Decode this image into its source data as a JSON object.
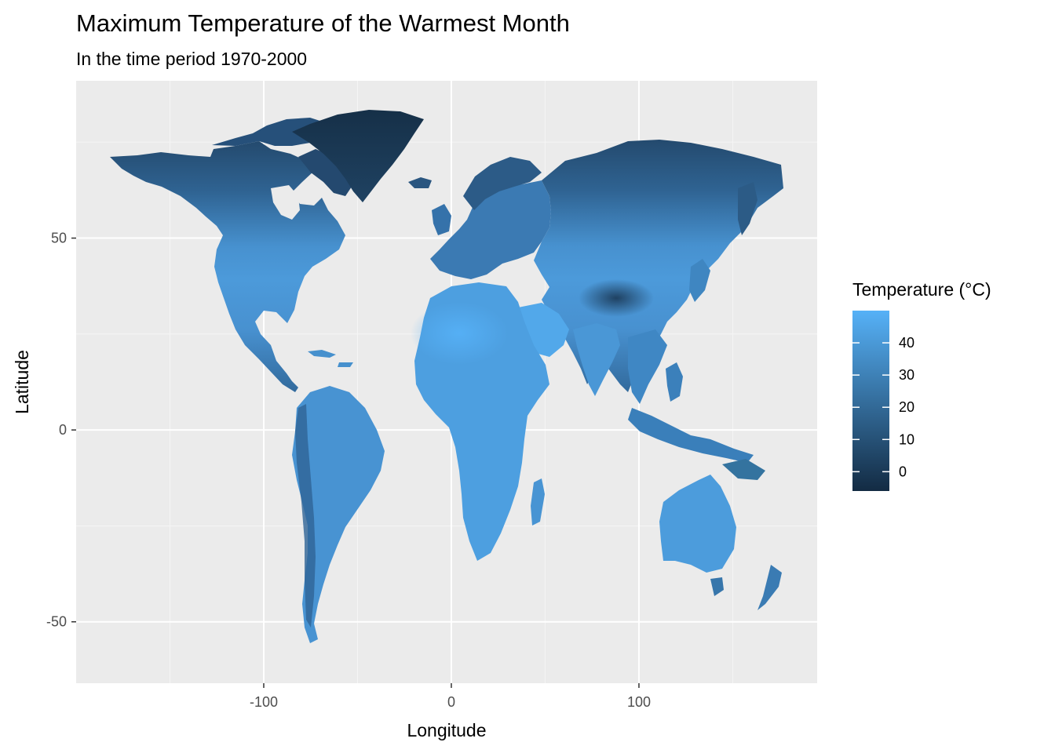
{
  "title": "Maximum Temperature of the Warmest Month",
  "subtitle": "In the time period 1970-2000",
  "x_axis": {
    "label": "Longitude",
    "ticks": [
      -100,
      0,
      100
    ],
    "tick_labels": [
      "-100",
      "0",
      "100"
    ],
    "minor_ticks": [
      -150,
      -50,
      50,
      150
    ],
    "range": [
      -200,
      195
    ]
  },
  "y_axis": {
    "label": "Latitude",
    "ticks": [
      50,
      0,
      -50
    ],
    "tick_labels": [
      "50",
      "0",
      "-50"
    ],
    "minor_ticks": [
      75,
      25,
      -25
    ],
    "range": [
      -66,
      91
    ]
  },
  "legend": {
    "title": "Temperature (°C)",
    "placement": "right",
    "breaks": [
      40,
      30,
      20,
      10,
      0
    ],
    "break_labels": [
      "40",
      "30",
      "20",
      "10",
      "0"
    ],
    "range": [
      -6,
      50
    ],
    "color_low": "#132B43",
    "color_high": "#56B1F7"
  },
  "colors": {
    "panel_background": "#EBEBEB",
    "grid_major": "#FFFFFF",
    "grid_minor": "#F5F5F5",
    "ocean": "#EBEBEB"
  }
}
